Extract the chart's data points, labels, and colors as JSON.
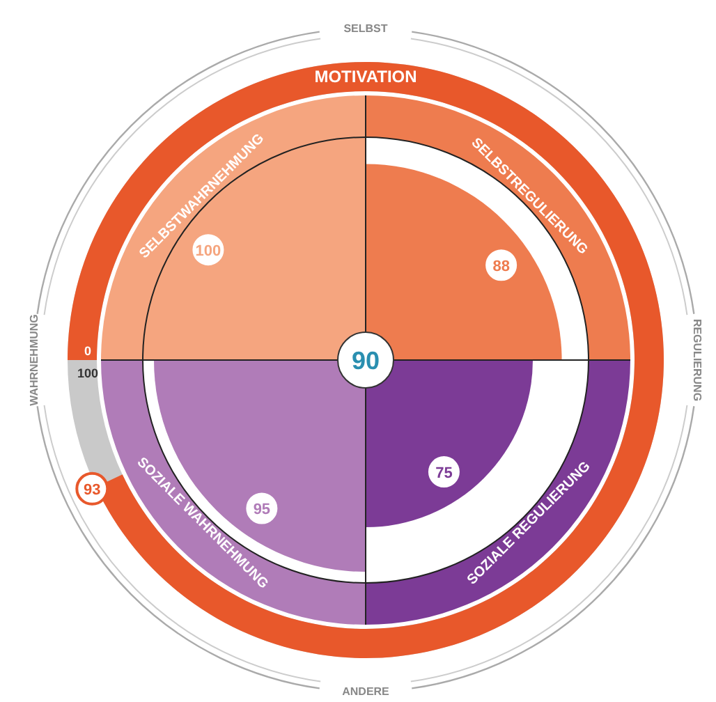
{
  "chart_data": {
    "type": "other",
    "title": "MOTIVATION",
    "categories": [
      "SELBSTWAHRNEHMUNG",
      "SELBSTREGULIERUNG",
      "SOZIALE WAHRNEHMUNG",
      "SOZIALE REGULIERUNG"
    ],
    "values": [
      100,
      88,
      95,
      75
    ],
    "colors": [
      "#f5a57f",
      "#ee7c4f",
      "#b07cb8",
      "#7c3b96"
    ],
    "data_labels": true,
    "annotations": [
      "SELBST",
      "REGULIERUNG",
      "ANDERE",
      "WAHRNEHMUNG",
      "90",
      "0",
      "100",
      "93"
    ]
  }
}
